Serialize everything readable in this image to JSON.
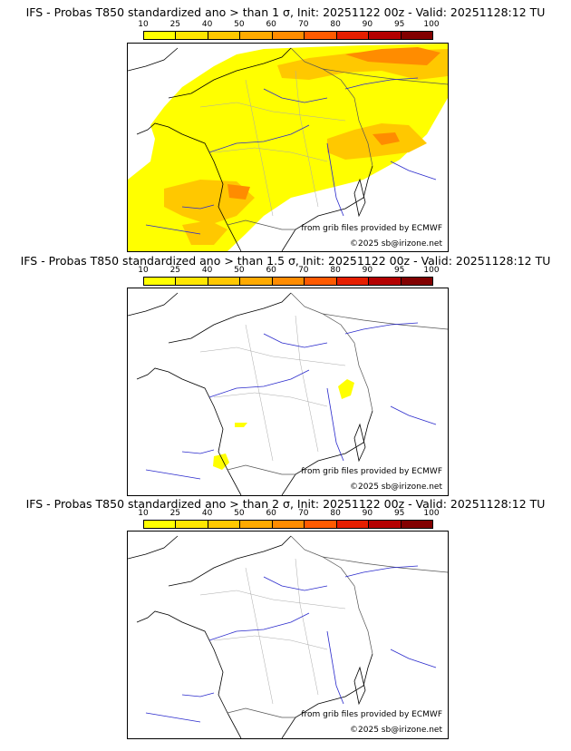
{
  "colorbar": {
    "ticks": [
      "10",
      "25",
      "40",
      "50",
      "60",
      "70",
      "80",
      "90",
      "95",
      "100"
    ],
    "colors": [
      "#ffff00",
      "#ffe600",
      "#ffc800",
      "#ffaa00",
      "#ff8c00",
      "#ff5a00",
      "#e61e00",
      "#b40000",
      "#820000"
    ]
  },
  "panels": [
    {
      "title": "IFS - Probas T850  standardized ano > than 1 σ, Init: 20251122 00z - Valid: 20251128:12 TU",
      "credit": "from grib files provided by ECMWF",
      "copyright": "©2025 sb@irizone.net"
    },
    {
      "title": "IFS - Probas T850  standardized ano > than 1.5 σ, Init: 20251122 00z - Valid: 20251128:12 TU",
      "credit": "from grib files provided by ECMWF",
      "copyright": "©2025 sb@irizone.net"
    },
    {
      "title": "IFS - Probas T850  standardized ano > than 2 σ, Init: 20251122 00z - Valid: 20251128:12 TU",
      "credit": "from grib files provided by ECMWF",
      "copyright": "©2025 sb@irizone.net"
    }
  ]
}
